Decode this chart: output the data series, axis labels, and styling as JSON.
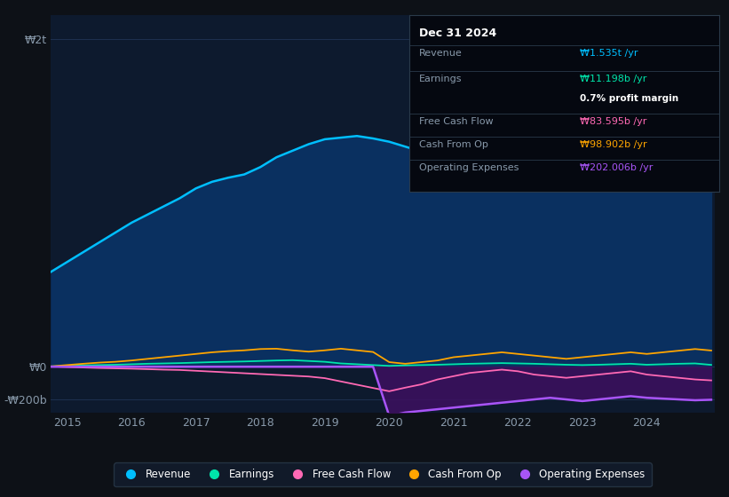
{
  "background_color": "#0d1117",
  "plot_bg_color": "#0d1a2e",
  "grid_color": "#1e3050",
  "text_color": "#8899aa",
  "years": [
    2014.75,
    2015,
    2015.25,
    2015.5,
    2015.75,
    2016,
    2016.25,
    2016.5,
    2016.75,
    2017,
    2017.25,
    2017.5,
    2017.75,
    2018,
    2018.25,
    2018.5,
    2018.75,
    2019,
    2019.25,
    2019.5,
    2019.75,
    2020,
    2020.25,
    2020.5,
    2020.75,
    2021,
    2021.25,
    2021.5,
    2021.75,
    2022,
    2022.25,
    2022.5,
    2022.75,
    2023,
    2023.25,
    2023.5,
    2023.75,
    2024,
    2024.25,
    2024.5,
    2024.75,
    2025.0
  ],
  "revenue": [
    580,
    640,
    700,
    760,
    820,
    880,
    930,
    980,
    1030,
    1090,
    1130,
    1155,
    1175,
    1220,
    1280,
    1320,
    1360,
    1390,
    1400,
    1410,
    1395,
    1375,
    1345,
    1315,
    1340,
    1380,
    1420,
    1460,
    1500,
    1520,
    1528,
    1535,
    1528,
    1540,
    1558,
    1568,
    1580,
    1600,
    1650,
    1700,
    1740,
    1535
  ],
  "earnings": [
    2,
    5,
    8,
    10,
    12,
    15,
    18,
    20,
    22,
    25,
    28,
    30,
    32,
    35,
    38,
    40,
    35,
    30,
    20,
    15,
    10,
    5,
    8,
    10,
    12,
    15,
    18,
    20,
    22,
    20,
    18,
    15,
    12,
    10,
    12,
    15,
    18,
    12,
    15,
    18,
    20,
    11.198
  ],
  "free_cash_flow": [
    2,
    -2,
    -5,
    -8,
    -10,
    -12,
    -15,
    -18,
    -20,
    -25,
    -30,
    -35,
    -40,
    -45,
    -50,
    -55,
    -60,
    -70,
    -90,
    -110,
    -130,
    -150,
    -128,
    -108,
    -78,
    -58,
    -38,
    -28,
    -18,
    -28,
    -48,
    -58,
    -68,
    -58,
    -48,
    -38,
    -28,
    -48,
    -58,
    -68,
    -78,
    -83.595
  ],
  "cash_from_op": [
    2,
    10,
    18,
    25,
    30,
    38,
    48,
    58,
    68,
    78,
    88,
    95,
    100,
    108,
    110,
    100,
    92,
    100,
    110,
    100,
    90,
    28,
    18,
    28,
    38,
    58,
    68,
    78,
    88,
    78,
    68,
    58,
    48,
    58,
    68,
    78,
    88,
    78,
    88,
    98,
    108,
    98.902
  ],
  "operating_expenses": [
    0,
    0,
    0,
    0,
    0,
    0,
    0,
    0,
    0,
    0,
    0,
    0,
    0,
    0,
    0,
    0,
    0,
    0,
    0,
    0,
    0,
    -300,
    -280,
    -270,
    -260,
    -250,
    -240,
    -230,
    -220,
    -210,
    -200,
    -190,
    -200,
    -210,
    -200,
    -190,
    -180,
    -190,
    -195,
    -200,
    -205,
    -202.006
  ],
  "revenue_color": "#00bfff",
  "earnings_color": "#00e5aa",
  "free_cash_flow_color": "#ff69b4",
  "cash_from_op_color": "#ffa500",
  "operating_expenses_color": "#a855f7",
  "revenue_fill_color": "#0a3060",
  "operating_expenses_fill_color": "#3d1060",
  "ylim_min": -280,
  "ylim_max": 2150,
  "yticks": [
    -200,
    0,
    2000
  ],
  "xticks": [
    2015,
    2016,
    2017,
    2018,
    2019,
    2020,
    2021,
    2022,
    2023,
    2024
  ],
  "tooltip_date": "Dec 31 2024",
  "tooltip_revenue_label": "Revenue",
  "tooltip_revenue_value": "₩1.535t /yr",
  "tooltip_earnings_label": "Earnings",
  "tooltip_earnings_value": "₩11.198b /yr",
  "tooltip_earnings_margin": "0.7% profit margin",
  "tooltip_fcf_label": "Free Cash Flow",
  "tooltip_fcf_value": "₩83.595b /yr",
  "tooltip_cashop_label": "Cash From Op",
  "tooltip_cashop_value": "₩98.902b /yr",
  "tooltip_opex_label": "Operating Expenses",
  "tooltip_opex_value": "₩202.006b /yr",
  "legend_labels": [
    "Revenue",
    "Earnings",
    "Free Cash Flow",
    "Cash From Op",
    "Operating Expenses"
  ],
  "legend_colors": [
    "#00bfff",
    "#00e5aa",
    "#ff69b4",
    "#ffa500",
    "#a855f7"
  ]
}
